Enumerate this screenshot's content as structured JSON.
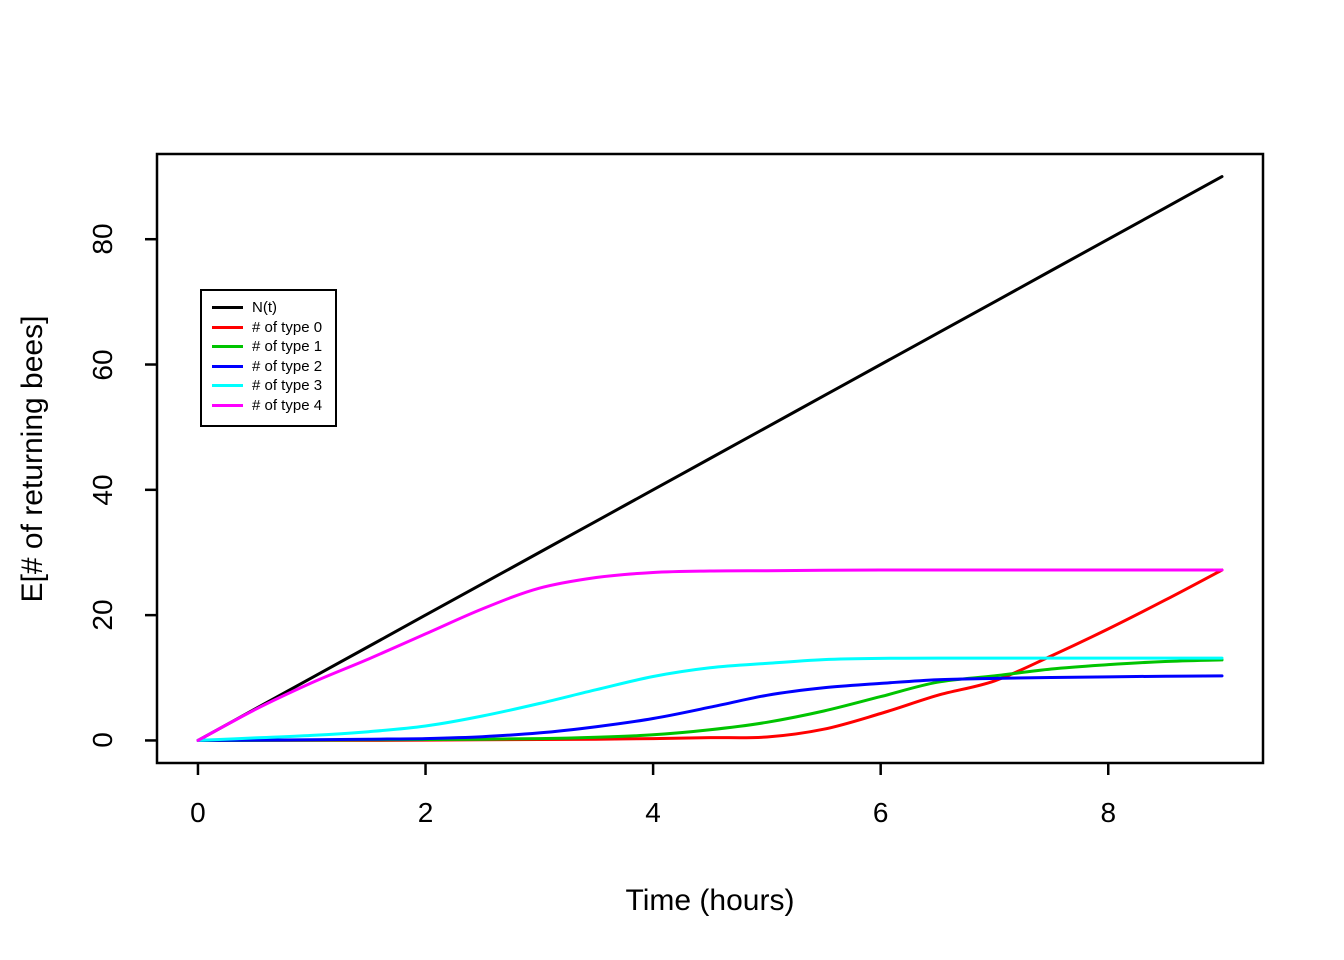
{
  "figure": {
    "background": "#ffffff"
  },
  "chart_data": {
    "type": "line",
    "title": "",
    "xlabel": "Time (hours)",
    "ylabel": "E[# of returning bees]",
    "xlim": [
      0,
      9
    ],
    "ylim": [
      0,
      90
    ],
    "x_ticks": [
      0,
      2,
      4,
      6,
      8
    ],
    "y_ticks": [
      0,
      20,
      40,
      60,
      80
    ],
    "grid": false,
    "legend_position": "upper-left-inset",
    "axis_color": "#000000",
    "x": [
      0,
      0.5,
      1,
      1.5,
      2,
      2.5,
      3,
      3.5,
      4,
      4.5,
      5,
      5.5,
      6,
      6.5,
      7,
      7.5,
      8,
      8.5,
      9
    ],
    "series": [
      {
        "name": "N(t)",
        "color": "#000000",
        "values": [
          0,
          5,
          10,
          15,
          20,
          25,
          30,
          35,
          40,
          45,
          50,
          55,
          60,
          65,
          70,
          75,
          80,
          85,
          90
        ]
      },
      {
        "name": "# of type 0",
        "color": "#FF0000",
        "values": [
          0,
          0,
          0,
          0,
          0.05,
          0.1,
          0.15,
          0.2,
          0.3,
          0.45,
          0.55,
          1.8,
          4.3,
          7.2,
          9.5,
          13.5,
          17.8,
          22.4,
          27.2
        ]
      },
      {
        "name": "# of type 1",
        "color": "#00C400",
        "values": [
          0,
          0,
          0.05,
          0.1,
          0.15,
          0.2,
          0.3,
          0.5,
          0.9,
          1.7,
          2.9,
          4.7,
          7.0,
          9.3,
          10.3,
          11.4,
          12.1,
          12.6,
          12.85
        ]
      },
      {
        "name": "# of type 2",
        "color": "#0000FF",
        "values": [
          0,
          0.05,
          0.1,
          0.2,
          0.3,
          0.6,
          1.2,
          2.2,
          3.5,
          5.3,
          7.2,
          8.4,
          9.1,
          9.7,
          9.9,
          10.05,
          10.15,
          10.25,
          10.3
        ]
      },
      {
        "name": "# of type 3",
        "color": "#00FFFF",
        "values": [
          0,
          0.4,
          0.8,
          1.4,
          2.3,
          3.9,
          5.9,
          8.1,
          10.2,
          11.6,
          12.3,
          12.9,
          13.1,
          13.15,
          13.15,
          13.15,
          13.15,
          13.15,
          13.15
        ]
      },
      {
        "name": "# of type 4",
        "color": "#FF00FF",
        "values": [
          0,
          4.9,
          9.2,
          13.0,
          17.0,
          21.0,
          24.3,
          26.0,
          26.8,
          27.05,
          27.1,
          27.15,
          27.2,
          27.2,
          27.2,
          27.2,
          27.2,
          27.2,
          27.2
        ]
      }
    ]
  }
}
